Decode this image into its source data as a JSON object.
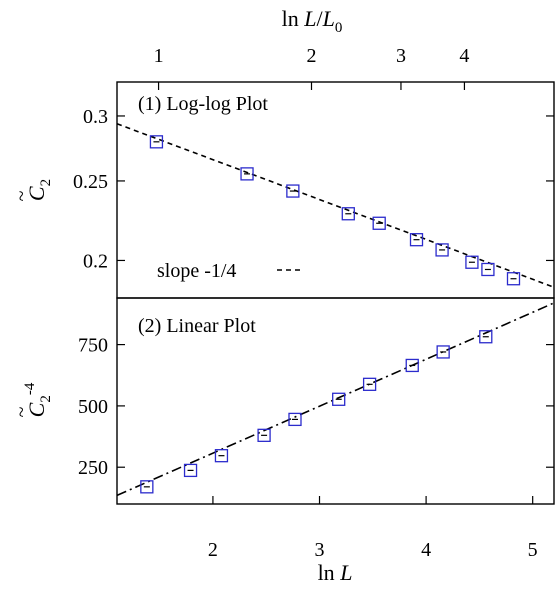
{
  "chart_data": [
    {
      "type": "scatter",
      "panel_label": "(1) Log-log Plot",
      "x_title_base": "ln ",
      "x_title_var": "L",
      "top_axis_title_base": "ln ",
      "top_axis_title_var": "L",
      "top_axis_title_div": "/",
      "top_axis_title_sub_var": "L",
      "top_axis_title_sub": "0",
      "top_axis_ticks": [
        1,
        2,
        3,
        4
      ],
      "top_axis_scale": "log",
      "y_title_var": "C",
      "y_title_accent": "~",
      "y_title_sub": "2",
      "y_scale": "log",
      "xlim": [
        1.1,
        5.2
      ],
      "ylim": [
        0.18,
        0.33
      ],
      "yticks": [
        0.2,
        0.25,
        0.3
      ],
      "yticks_labels": [
        "0.2",
        "0.25",
        "0.3"
      ],
      "series": [
        {
          "marker": "open-square",
          "color": "#2b2bcc",
          "x": [
            1.47,
            2.32,
            2.75,
            3.27,
            3.56,
            3.91,
            4.15,
            4.43,
            4.58,
            4.82
          ],
          "y": [
            0.279,
            0.255,
            0.243,
            0.228,
            0.222,
            0.212,
            0.206,
            0.199,
            0.195,
            0.19
          ]
        }
      ],
      "fit_line": {
        "name": "slope -1/4",
        "style": "dashed",
        "x": [
          1.1,
          5.2
        ],
        "y": [
          0.2935,
          0.1855
        ]
      },
      "legend_position": "bottom-left"
    },
    {
      "type": "scatter",
      "panel_label": "(2) Linear Plot",
      "x_title_base": "ln ",
      "x_title_var": "L",
      "y_title_var": "C",
      "y_title_accent": "~",
      "y_title_sub": "2",
      "y_title_sup": "-4",
      "y_scale": "linear",
      "xlim": [
        1.1,
        5.2
      ],
      "ylim": [
        100,
        940
      ],
      "xticks": [
        2,
        3,
        4,
        5
      ],
      "yticks": [
        250,
        500,
        750
      ],
      "series": [
        {
          "marker": "open-square",
          "color": "#2b2bcc",
          "x": [
            1.38,
            1.79,
            2.08,
            2.48,
            2.77,
            3.18,
            3.47,
            3.87,
            4.16,
            4.56
          ],
          "y": [
            170,
            237,
            297,
            380,
            445,
            527,
            588,
            665,
            720,
            782
          ]
        }
      ],
      "fit_line": {
        "style": "dashdot",
        "x": [
          1.1,
          5.2
        ],
        "y": [
          135,
          920
        ]
      }
    }
  ]
}
